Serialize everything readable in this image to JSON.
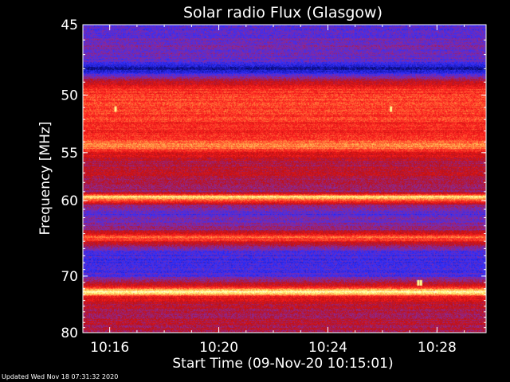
{
  "chart_data": {
    "type": "heatmap",
    "title": "Solar radio Flux (Glasgow)",
    "xlabel": "Start Time (09-Nov-20 10:15:01)",
    "ylabel": "Frequency [MHz]",
    "x_ticks": [
      "10:16",
      "10:20",
      "10:24",
      "10:28"
    ],
    "x_tick_minutes": [
      16,
      20,
      24,
      28
    ],
    "x_range_minutes": [
      15.0167,
      29.8
    ],
    "y_ticks": [
      45,
      50,
      55,
      60,
      70,
      80
    ],
    "y_range": [
      45,
      80
    ],
    "y_scale": "reciprocal",
    "colormap": [
      "#000000",
      "#1010a0",
      "#3030ff",
      "#8a2a9a",
      "#c01010",
      "#ff2020",
      "#ff9040",
      "#ffff80",
      "#ffffff"
    ],
    "frequency_bands": [
      {
        "mhz": 45.0,
        "level": 0.28
      },
      {
        "mhz": 45.5,
        "level": 0.3
      },
      {
        "mhz": 46.0,
        "level": 0.33
      },
      {
        "mhz": 46.5,
        "level": 0.35
      },
      {
        "mhz": 47.0,
        "level": 0.33
      },
      {
        "mhz": 47.5,
        "level": 0.3
      },
      {
        "mhz": 48.0,
        "level": 0.12
      },
      {
        "mhz": 48.5,
        "level": 0.35
      },
      {
        "mhz": 49.0,
        "level": 0.5
      },
      {
        "mhz": 49.5,
        "level": 0.62
      },
      {
        "mhz": 50.0,
        "level": 0.65
      },
      {
        "mhz": 51.0,
        "level": 0.66
      },
      {
        "mhz": 52.0,
        "level": 0.64
      },
      {
        "mhz": 53.0,
        "level": 0.6
      },
      {
        "mhz": 54.0,
        "level": 0.68
      },
      {
        "mhz": 54.4,
        "level": 0.76
      },
      {
        "mhz": 55.0,
        "level": 0.58
      },
      {
        "mhz": 56.0,
        "level": 0.45
      },
      {
        "mhz": 57.0,
        "level": 0.5
      },
      {
        "mhz": 58.0,
        "level": 0.45
      },
      {
        "mhz": 59.0,
        "level": 0.4
      },
      {
        "mhz": 59.6,
        "level": 0.88
      },
      {
        "mhz": 60.5,
        "level": 0.4
      },
      {
        "mhz": 61.5,
        "level": 0.3
      },
      {
        "mhz": 62.5,
        "level": 0.35
      },
      {
        "mhz": 63.5,
        "level": 0.4
      },
      {
        "mhz": 64.5,
        "level": 0.73
      },
      {
        "mhz": 65.5,
        "level": 0.45
      },
      {
        "mhz": 66.5,
        "level": 0.28
      },
      {
        "mhz": 68.0,
        "level": 0.25
      },
      {
        "mhz": 70.0,
        "level": 0.3
      },
      {
        "mhz": 71.0,
        "level": 0.42
      },
      {
        "mhz": 71.8,
        "level": 0.6
      },
      {
        "mhz": 72.6,
        "level": 0.95
      },
      {
        "mhz": 73.5,
        "level": 0.55
      },
      {
        "mhz": 75.0,
        "level": 0.48
      },
      {
        "mhz": 76.5,
        "level": 0.45
      },
      {
        "mhz": 78.0,
        "level": 0.48
      },
      {
        "mhz": 80.0,
        "level": 0.45
      }
    ],
    "bursts": [
      {
        "minute": 16.2,
        "mhz": 51.1
      },
      {
        "minute": 26.3,
        "mhz": 51.1
      },
      {
        "minute": 27.3,
        "mhz": 71.0
      },
      {
        "minute": 27.4,
        "mhz": 71.0
      }
    ],
    "grid": false,
    "legend": "none"
  },
  "footer": {
    "updated": "Updated Wed Nov 18 07:31:32 2020"
  }
}
